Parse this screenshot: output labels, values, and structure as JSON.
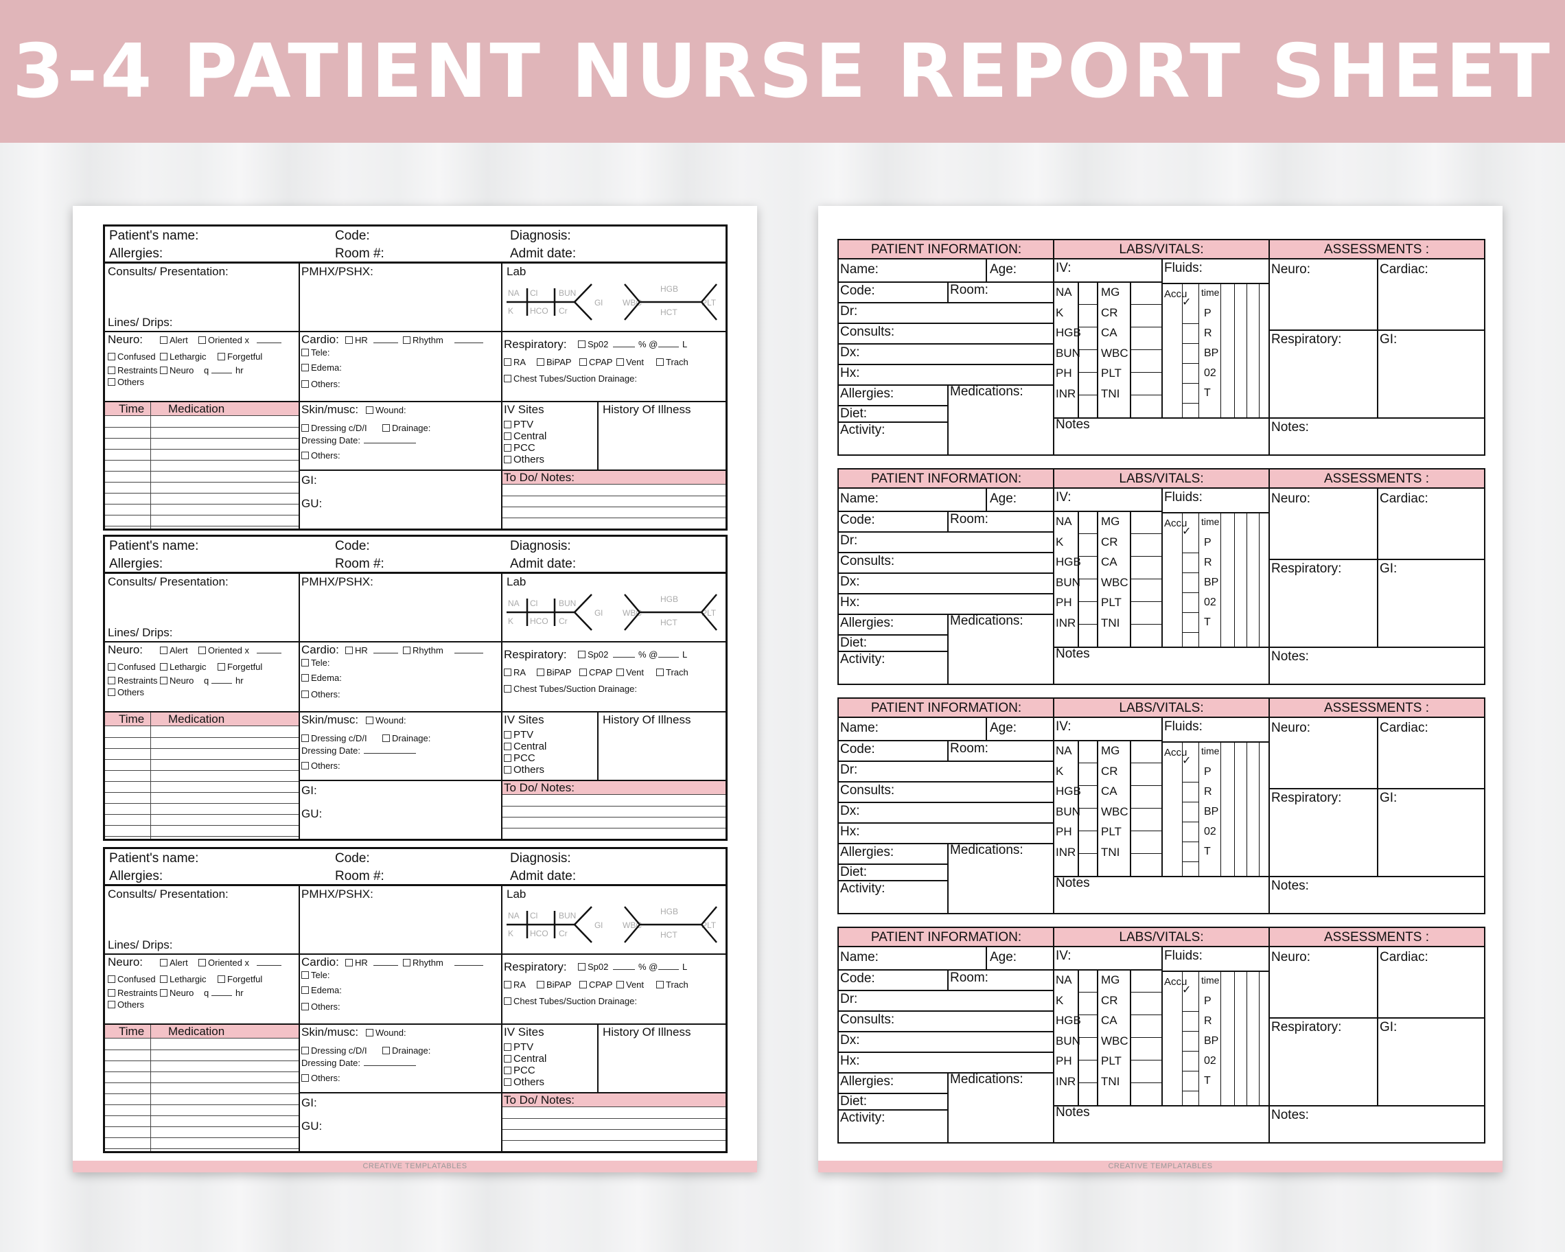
{
  "banner": {
    "title": "3-4 PATIENT NURSE REPORT SHEET"
  },
  "footer": {
    "brand": "CREATIVE TEMPLATABLES"
  },
  "left_form": {
    "patient_name": "Patient's name:",
    "code": "Code:",
    "diagnosis": "Diagnosis:",
    "allergies": "Allergies:",
    "room": "Room #:",
    "admit_date": "Admit date:",
    "consults": "Consults/ Presentation:",
    "lines_drips": "Lines/ Drips:",
    "pmhx": "PMHX/PSHX:",
    "lab": "Lab",
    "lab_labels": [
      "NA",
      "Cl",
      "BUN",
      "Gl",
      "K",
      "HCO",
      "Cr",
      "WBC",
      "HGB",
      "HCT",
      "PLT"
    ],
    "neuro": "Neuro:",
    "alert": "Alert",
    "oriented": "Oriented x",
    "confused": "Confused",
    "lethargic": "Lethargic",
    "forgetful": "Forgetful",
    "restraints": "Restraints",
    "neuro_q": "Neuro",
    "q": "q",
    "hr": "hr",
    "others": "Others",
    "cardio": "Cardio:",
    "hr_label": "HR",
    "rhythm": "Rhythm",
    "tele": "Tele:",
    "edema": "Edema:",
    "others_colon": "Others:",
    "respiratory": "Respiratory:",
    "spo2": "Sp02",
    "pct_at": "% @",
    "l": "L",
    "ra": "RA",
    "bipap": "BiPAP",
    "cpap": "CPAP",
    "vent": "Vent",
    "trach": "Trach",
    "chest_tubes": "Chest Tubes/Suction Drainage:",
    "time": "Time",
    "medication": "Medication",
    "skin": "Skin/musc:",
    "wound": "Wound:",
    "dressing": "Dressing c/D/I",
    "drainage": "Drainage:",
    "dressing_date": "Dressing Date:",
    "gi": "GI:",
    "gu": "GU:",
    "iv_sites": "IV Sites",
    "ptv": "PTV",
    "central": "Central",
    "pcc": "PCC",
    "history": "History Of Illness",
    "todo": "To Do/ Notes:"
  },
  "right_form": {
    "patient_info": "PATIENT INFORMATION:",
    "labs_vitals": "LABS/VITALS:",
    "assessments": "ASSESSMENTS :",
    "name": "Name:",
    "age": "Age:",
    "code": "Code:",
    "room": "Room:",
    "dr": "Dr:",
    "consults": "Consults:",
    "dx": "Dx:",
    "hx": "Hx:",
    "allergies": "Allergies:",
    "medications": "Medications:",
    "diet": "Diet:",
    "activity": "Activity:",
    "iv": "IV:",
    "fluids": "Fluids:",
    "labs_left": [
      "NA",
      "K",
      "HGB",
      "BUN",
      "PH",
      "INR"
    ],
    "labs_right": [
      "MG",
      "CR",
      "CA",
      "WBC",
      "PLT",
      "TNI"
    ],
    "accu": "Accu",
    "check": "✓",
    "time": "time",
    "vitals": [
      "P",
      "R",
      "BP",
      "02",
      "T"
    ],
    "notes": "Notes",
    "neuro": "Neuro:",
    "cardiac": "Cardiac:",
    "respiratory": "Respiratory:",
    "gi": "GI:",
    "notes_colon": "Notes:"
  }
}
